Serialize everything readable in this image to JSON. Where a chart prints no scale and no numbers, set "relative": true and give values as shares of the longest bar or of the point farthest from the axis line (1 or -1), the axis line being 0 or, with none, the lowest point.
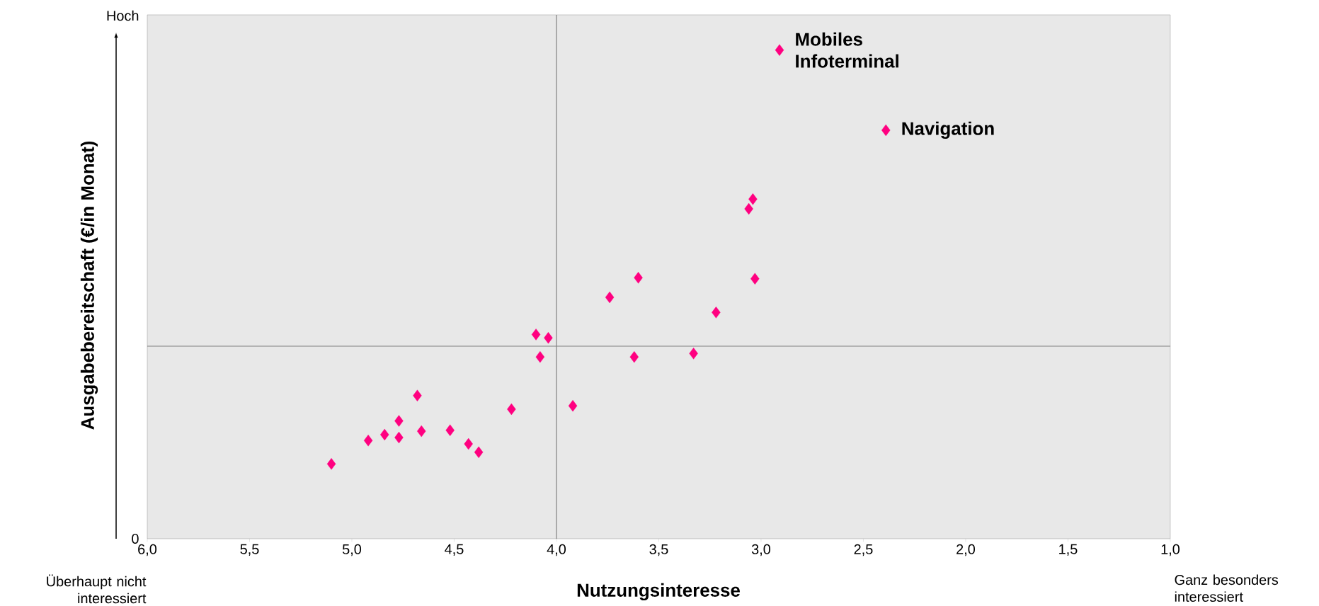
{
  "chart_data": {
    "type": "scatter",
    "relative": true,
    "xlabel": "Nutzungsinteresse",
    "ylabel": "Ausgabebereitschaft (€/in Monat)",
    "xlim": [
      6,
      1
    ],
    "xticks": [
      {
        "value": 6,
        "label": "6,0"
      },
      {
        "value": 5.5,
        "label": "5,5"
      },
      {
        "value": 5,
        "label": "5,0"
      },
      {
        "value": 4.5,
        "label": "4,5"
      },
      {
        "value": 4,
        "label": "4,0"
      },
      {
        "value": 3.5,
        "label": "3,5"
      },
      {
        "value": 3,
        "label": "3,0"
      },
      {
        "value": 2.5,
        "label": "2,5"
      },
      {
        "value": 2,
        "label": "2,0"
      },
      {
        "value": 1.5,
        "label": "1,5"
      },
      {
        "value": 1,
        "label": "1,0"
      }
    ],
    "marker": "diamond",
    "series": [
      {
        "color": "#ff0080",
        "x": [
          2.91,
          2.39,
          3.04,
          3.06,
          3.03,
          3.6,
          3.74,
          3.22,
          4.1,
          4.04,
          4.08,
          3.62,
          3.33,
          4.68,
          4.22,
          3.92,
          4.77,
          4.66,
          4.52,
          4.84,
          4.77,
          4.92,
          4.43,
          4.38,
          5.1
        ],
        "values": [
          1,
          0.836,
          0.695,
          0.675,
          0.532,
          0.534,
          0.494,
          0.463,
          0.418,
          0.411,
          0.372,
          0.372,
          0.379,
          0.293,
          0.265,
          0.272,
          0.241,
          0.22,
          0.222,
          0.213,
          0.207,
          0.201,
          0.194,
          0.177,
          0.153
        ]
      }
    ],
    "ref_lines": [
      {
        "axis": "x",
        "value": 4,
        "color": "#808080"
      },
      {
        "axis": "y",
        "value": 0.394,
        "color": "#808080"
      }
    ],
    "annotations": [
      "Hoch",
      "0",
      "Überhaupt nicht interessiert",
      "Ganz besonders interessiert",
      {
        "text": "Mobiles Infoterminal",
        "x": 2.91,
        "y": 1
      },
      {
        "text": "Navigation",
        "x": 2.39,
        "y": 0.836
      }
    ]
  }
}
